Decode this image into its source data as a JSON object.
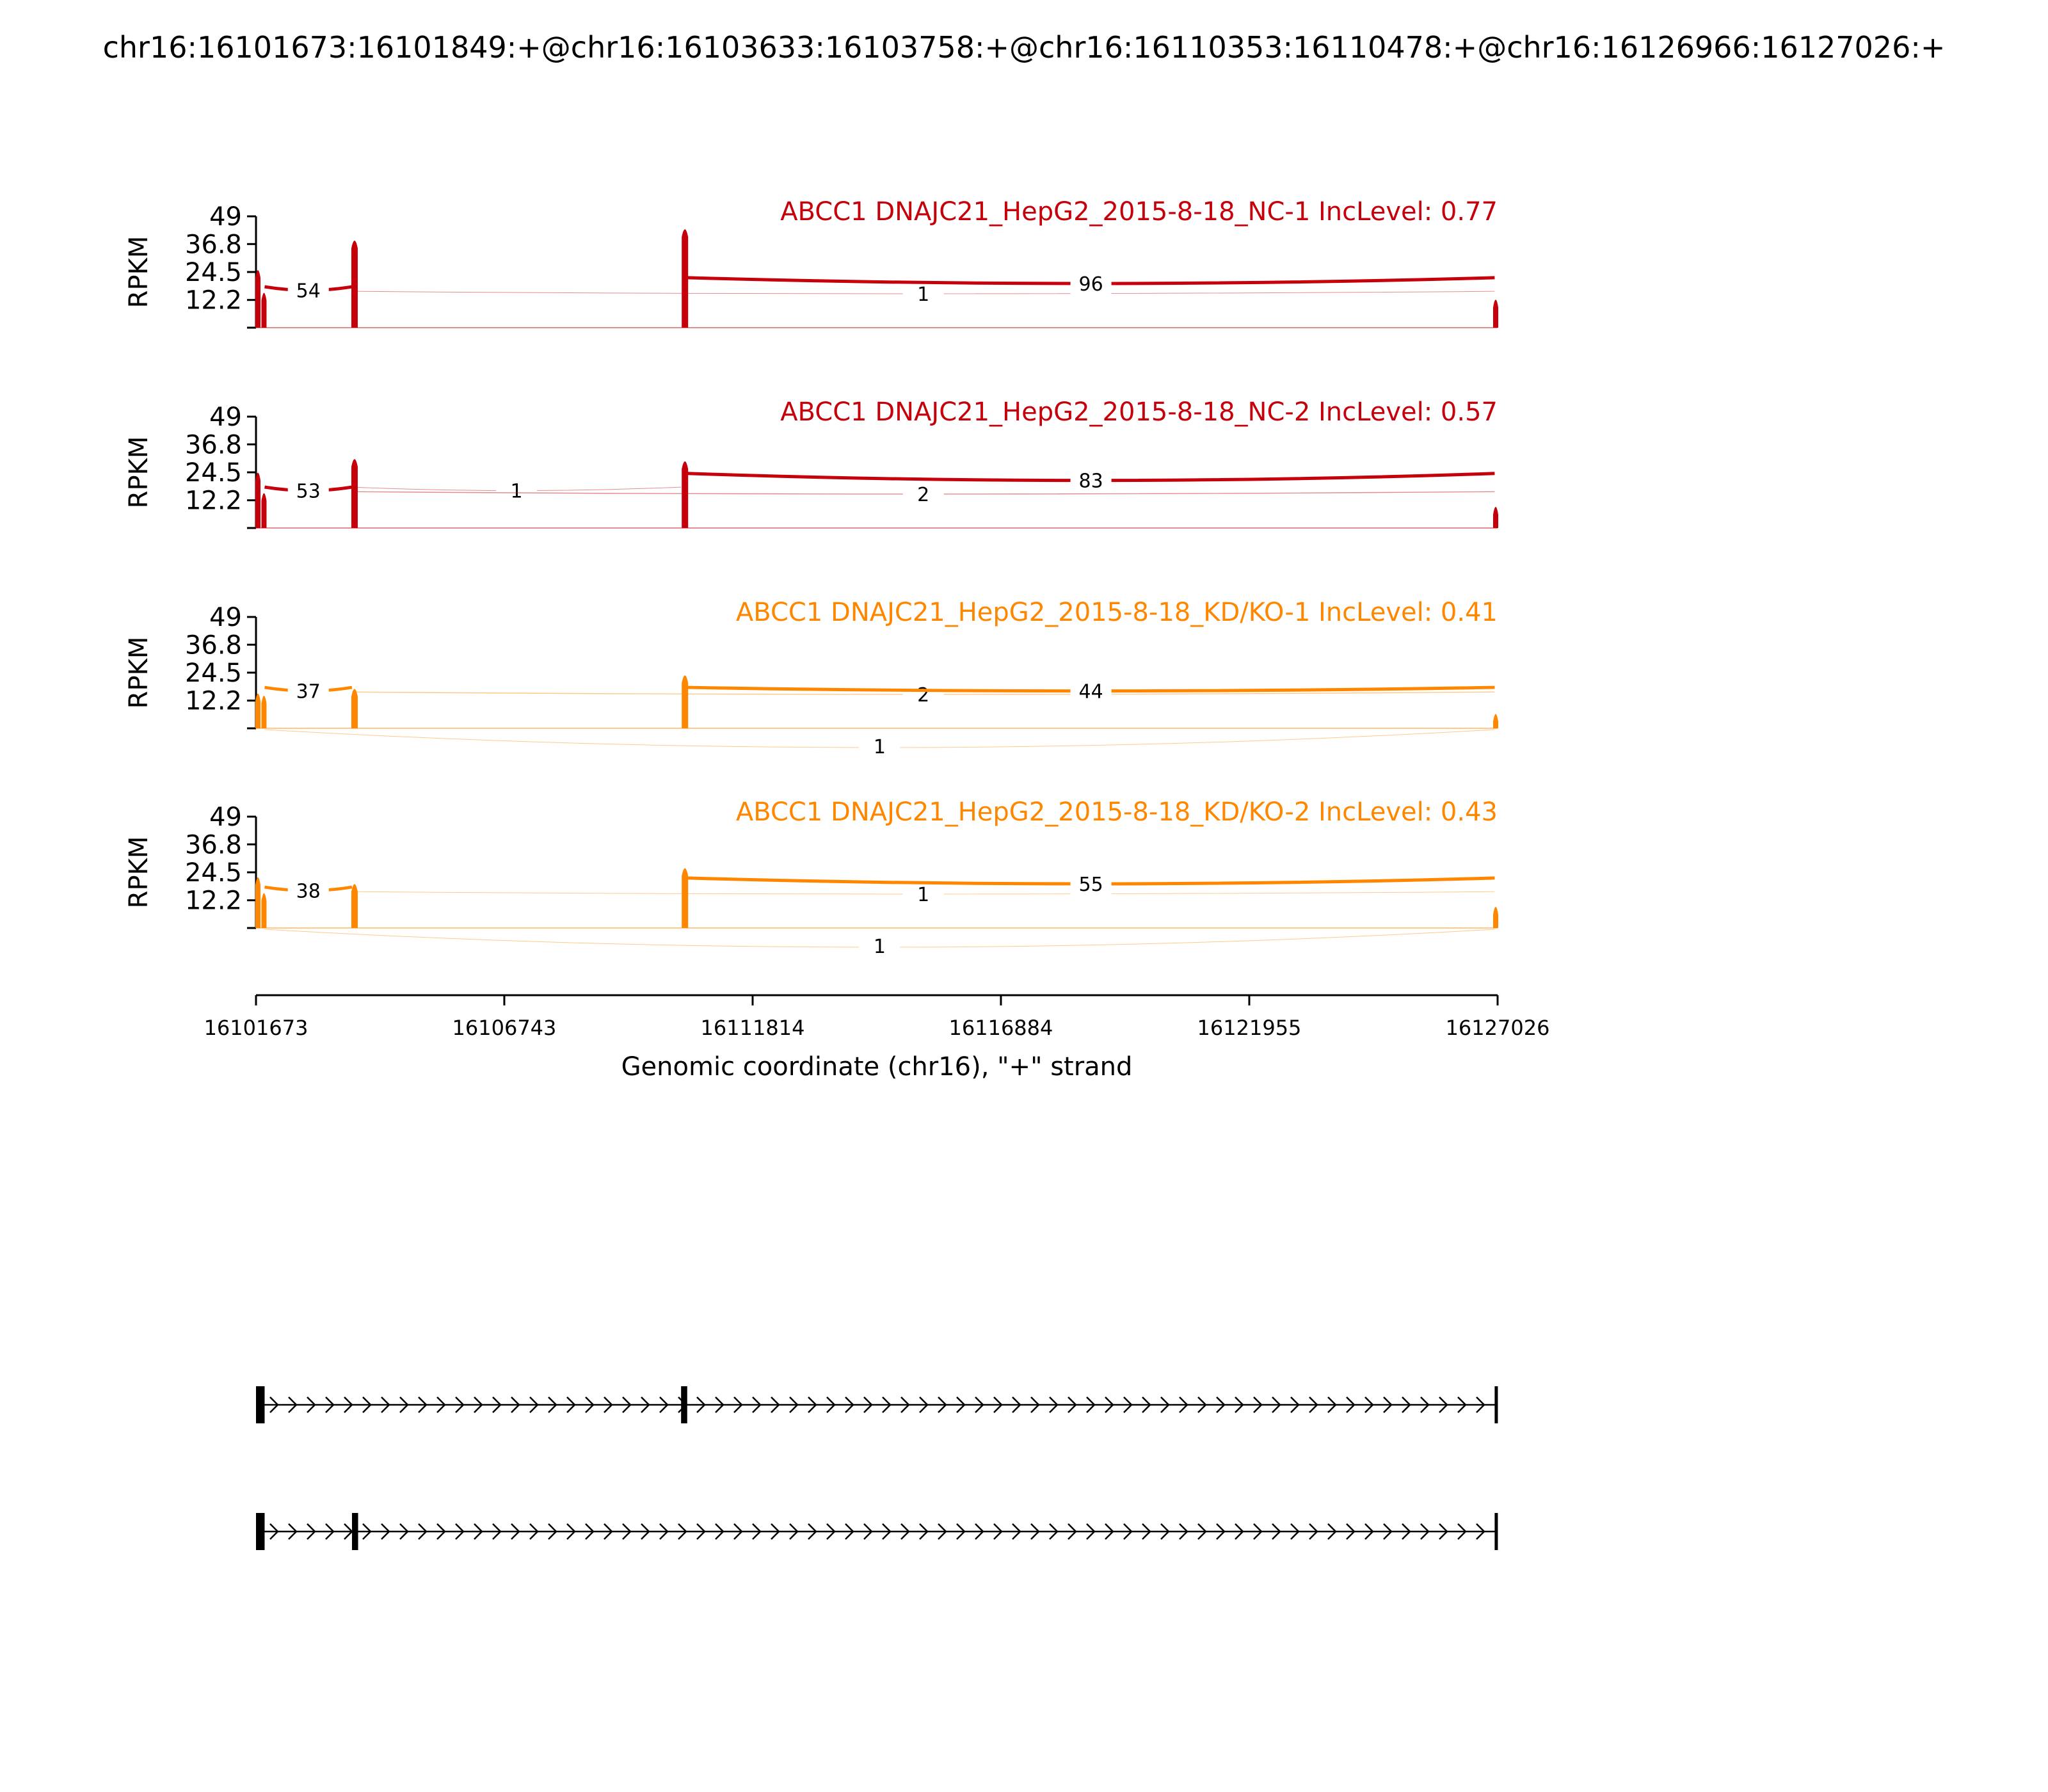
{
  "figure": {
    "title": "chr16:16101673:16101849:+@chr16:16103633:16103758:+@chr16:16110353:16110478:+@chr16:16126966:16127026:+"
  },
  "chart_data": {
    "type": "sashimi",
    "y_label": "RPKM",
    "yticks": [
      "49",
      "36.8",
      "24.5",
      "12.2"
    ],
    "ylim": [
      0,
      49
    ],
    "xlim": [
      16101673,
      16127026
    ],
    "xticks": [
      "16101673",
      "16106743",
      "16111814",
      "16116884",
      "16121955",
      "16127026"
    ],
    "xlabel": "Genomic coordinate (chr16), \"+\" strand",
    "exons": [
      {
        "start": 16101673,
        "end": 16101849
      },
      {
        "start": 16103633,
        "end": 16103758
      },
      {
        "start": 16110353,
        "end": 16110478
      },
      {
        "start": 16126966,
        "end": 16127026
      }
    ],
    "tracks": [
      {
        "name": "ABCC1 DNAJC21_HepG2_2015-8-18_NC-1 IncLevel: 0.77",
        "color": "#c5000b",
        "exon_peaks": [
          27,
          17,
          40,
          45,
          14
        ],
        "junctions": [
          {
            "start": 16101849,
            "end": 16103633,
            "count": "54",
            "side": "above",
            "h": 9
          },
          {
            "start": 16103633,
            "end": 16126966,
            "count": "1",
            "side": "above",
            "h": 8
          },
          {
            "start": 16110478,
            "end": 16126966,
            "count": "96",
            "side": "above",
            "h": 11
          }
        ]
      },
      {
        "name": "ABCC1 DNAJC21_HepG2_2015-8-18_NC-2 IncLevel: 0.57",
        "color": "#c5000b",
        "exon_peaks": [
          26,
          17,
          32,
          31,
          11
        ],
        "junctions": [
          {
            "start": 16101849,
            "end": 16103633,
            "count": "53",
            "side": "above",
            "h": 9
          },
          {
            "start": 16103633,
            "end": 16110353,
            "count": "1",
            "side": "above",
            "h": 9
          },
          {
            "start": 16103633,
            "end": 16126966,
            "count": "2",
            "side": "above",
            "h": 8
          },
          {
            "start": 16110478,
            "end": 16126966,
            "count": "83",
            "side": "above",
            "h": 12
          }
        ]
      },
      {
        "name": "ABCC1 DNAJC21_HepG2_2015-8-18_KD/KO-1 IncLevel: 0.41",
        "color": "#ff8700",
        "exon_peaks": [
          17,
          16,
          19,
          25,
          8
        ],
        "junctions": [
          {
            "start": 16101849,
            "end": 16103633,
            "count": "37",
            "side": "above",
            "h": 9
          },
          {
            "start": 16103633,
            "end": 16126966,
            "count": "2",
            "side": "above",
            "h": 8
          },
          {
            "start": 16110478,
            "end": 16126966,
            "count": "44",
            "side": "above",
            "h": 9
          },
          {
            "start": 16101849,
            "end": 16126966,
            "count": "1",
            "side": "below",
            "h": 8
          }
        ]
      },
      {
        "name": "ABCC1 DNAJC21_HepG2_2015-8-18_KD/KO-2 IncLevel: 0.43",
        "color": "#ff8700",
        "exon_peaks": [
          24,
          17,
          21,
          28,
          11
        ],
        "junctions": [
          {
            "start": 16101849,
            "end": 16103633,
            "count": "38",
            "side": "above",
            "h": 9
          },
          {
            "start": 16103633,
            "end": 16126966,
            "count": "1",
            "side": "above",
            "h": 8
          },
          {
            "start": 16110478,
            "end": 16126966,
            "count": "55",
            "side": "above",
            "h": 11
          },
          {
            "start": 16101849,
            "end": 16126966,
            "count": "1",
            "side": "below",
            "h": 8
          }
        ]
      }
    ],
    "isoforms": [
      {
        "exons": [
          [
            16101673,
            16101849
          ],
          [
            16110353,
            16110478
          ],
          [
            16126966,
            16127026
          ]
        ]
      },
      {
        "exons": [
          [
            16101673,
            16101849
          ],
          [
            16103633,
            16103758
          ],
          [
            16126966,
            16127026
          ]
        ]
      }
    ]
  }
}
